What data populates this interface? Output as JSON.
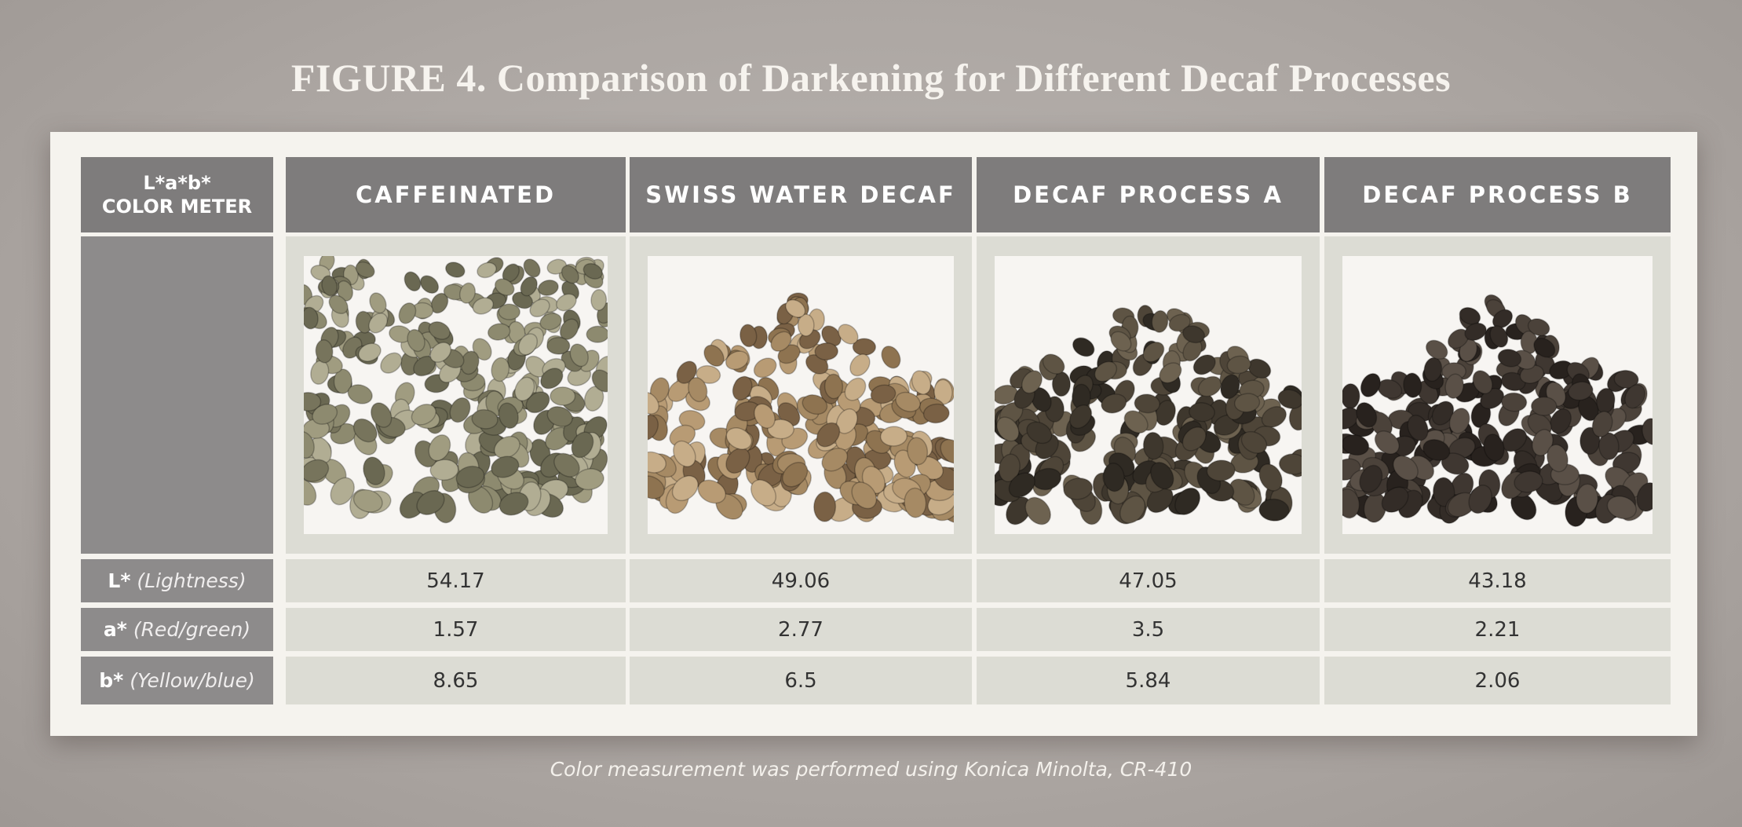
{
  "title": "FIGURE 4. Comparison of Darkening for Different Decaf Processes",
  "table": {
    "corner": [
      "L*a*b*",
      "COLOR METER"
    ],
    "headers": [
      "CAFFEINATED",
      "SWISS WATER DECAF",
      "DECAF PROCESS A",
      "DECAF PROCESS B"
    ],
    "rows": [
      {
        "symbol": "L*",
        "name": "(Lightness)",
        "values": [
          54.17,
          49.06,
          47.05,
          43.18
        ]
      },
      {
        "symbol": "a*",
        "name": "(Red/green)",
        "values": [
          1.57,
          2.77,
          3.5,
          2.21
        ]
      },
      {
        "symbol": "b*",
        "name": "(Yellow/blue)",
        "values": [
          8.65,
          6.5,
          5.84,
          2.06
        ]
      }
    ]
  },
  "footnote": "Color measurement was performed using Konica Minolta, CR-410"
}
